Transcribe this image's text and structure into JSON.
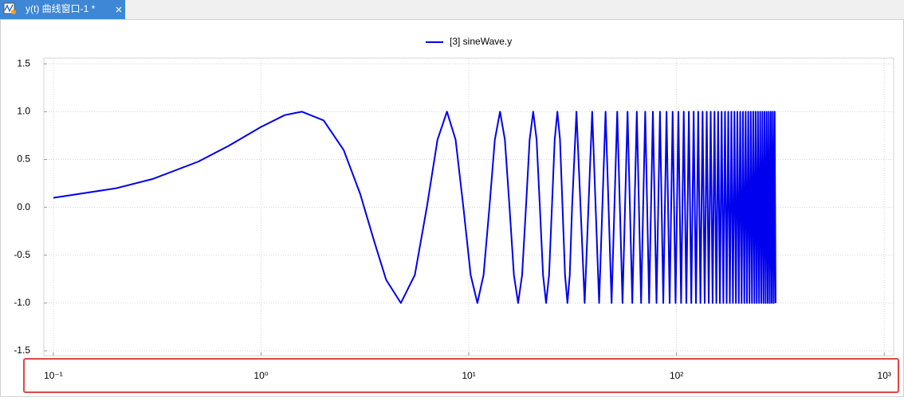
{
  "tab": {
    "title": "y(t) 曲线窗口-1 *"
  },
  "chart_data": {
    "type": "line",
    "log_x": true,
    "grid": true,
    "legend": "top",
    "xlim": [
      0.09,
      1110
    ],
    "ylim": [
      -1.55,
      1.56
    ],
    "xticks": [
      {
        "value": 0.1,
        "label": "10⁻¹"
      },
      {
        "value": 1,
        "label": "10⁰"
      },
      {
        "value": 10,
        "label": "10¹"
      },
      {
        "value": 100,
        "label": "10²"
      },
      {
        "value": 1000,
        "label": "10³"
      }
    ],
    "yticks": [
      -1.5,
      {
        "value": -1,
        "label": "-1.0"
      },
      -0.5,
      {
        "value": 0,
        "label": "0.0"
      },
      0.5,
      {
        "value": 1,
        "label": "1.0"
      },
      1.5
    ],
    "x": [
      0.1,
      0.2,
      0.3,
      0.5,
      0.7,
      1.0,
      1.3,
      1.57,
      2.0,
      2.5,
      3.0,
      3.5,
      4.0,
      4.71,
      5.5,
      6.28,
      7.07,
      7.85,
      8.64,
      9.42,
      10.21,
      11.0,
      11.78,
      12.57,
      13.35,
      14.14,
      14.92,
      15.71,
      16.49,
      17.28,
      18.06,
      18.85,
      19.63,
      20.42,
      21.21,
      21.99,
      22.78,
      23.56,
      24.35,
      25.13,
      25.92,
      26.7,
      27.49,
      28.27,
      29.06,
      29.85,
      30.63,
      31.42,
      32.99,
      36.13,
      39.27,
      42.41,
      45.55,
      48.69,
      51.84,
      54.98,
      58.12,
      61.26,
      64.4,
      67.54,
      70.69,
      73.83,
      76.97,
      80.11,
      83.25,
      86.39,
      89.54,
      92.68,
      95.82,
      98.96,
      102.1,
      105.24,
      108.38,
      111.53,
      114.67,
      117.81,
      120.95,
      124.09,
      127.23,
      130.38,
      133.52,
      136.66,
      139.8,
      142.94,
      146.08,
      149.23,
      152.37,
      155.51,
      158.65,
      161.79,
      164.93,
      168.08,
      171.22,
      174.36,
      177.5,
      180.64,
      183.78,
      186.92,
      190.07,
      193.21,
      196.35,
      199.49,
      202.63,
      205.77,
      208.92,
      212.06,
      215.2,
      218.34,
      221.48,
      224.62,
      227.77,
      230.91,
      234.05,
      237.19,
      240.33,
      243.47,
      246.62,
      249.76,
      252.9,
      256.04,
      259.18,
      262.32,
      265.46,
      268.61,
      271.75,
      274.89,
      278.03,
      281.17,
      284.31,
      287.46,
      290.6,
      293.74,
      296.88,
      300
    ],
    "series": [
      {
        "name": "[3] sineWave.y",
        "color": "#0000ee",
        "values": [
          0.1,
          0.199,
          0.296,
          0.479,
          0.644,
          0.841,
          0.964,
          1.0,
          0.909,
          0.598,
          0.141,
          -0.351,
          -0.757,
          -1.0,
          -0.706,
          0,
          0.707,
          1,
          0.707,
          0,
          -0.707,
          -1,
          -0.707,
          0,
          0.707,
          1,
          0.707,
          0,
          -0.707,
          -1,
          -0.707,
          0,
          0.707,
          1,
          0.707,
          0,
          -0.707,
          -1,
          -0.707,
          0,
          0.707,
          1,
          0.707,
          0,
          -0.707,
          -1,
          -0.707,
          0,
          1,
          -1,
          1,
          -1,
          1,
          -1,
          1,
          -1,
          1,
          -1,
          1,
          -1,
          1,
          -1,
          1,
          -1,
          1,
          -1,
          1,
          -1,
          1,
          -1,
          1,
          -1,
          1,
          -1,
          1,
          -1,
          1,
          -1,
          1,
          -1,
          1,
          -1,
          1,
          -1,
          1,
          -1,
          1,
          -1,
          1,
          -1,
          1,
          -1,
          1,
          -1,
          1,
          -1,
          1,
          -1,
          1,
          -1,
          1,
          -1,
          1,
          -1,
          1,
          -1,
          1,
          -1,
          1,
          -1,
          1,
          -1,
          1,
          -1,
          1,
          -1,
          1,
          -1,
          1,
          -1,
          1,
          -1,
          1,
          -1,
          1,
          -1,
          1,
          -1,
          1,
          -1,
          1,
          -1,
          1,
          -1
        ]
      }
    ]
  }
}
